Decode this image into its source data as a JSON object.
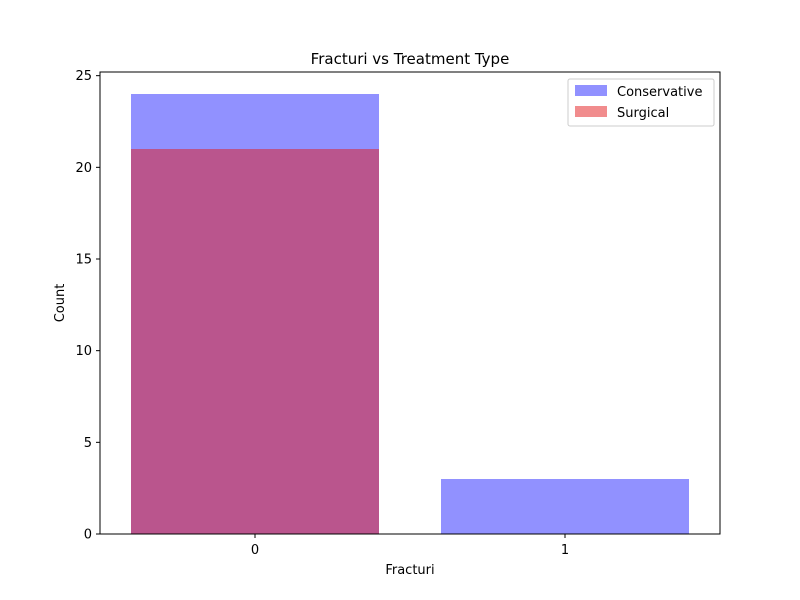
{
  "chart_data": {
    "type": "bar",
    "title": "Fracturi vs Treatment Type",
    "xlabel": "Fracturi",
    "ylabel": "Count",
    "categories": [
      "0",
      "1"
    ],
    "ylim": [
      0,
      25.2
    ],
    "yticks": [
      0,
      5,
      10,
      15,
      20,
      25
    ],
    "series": [
      {
        "name": "Conservative",
        "values": [
          24,
          3
        ],
        "color": "#0000ff",
        "opacity": 0.43
      },
      {
        "name": "Surgical",
        "values": [
          21,
          0
        ],
        "color": "#e41a1c",
        "opacity": 0.5
      }
    ],
    "legend_position": "top-right",
    "grid": false
  }
}
